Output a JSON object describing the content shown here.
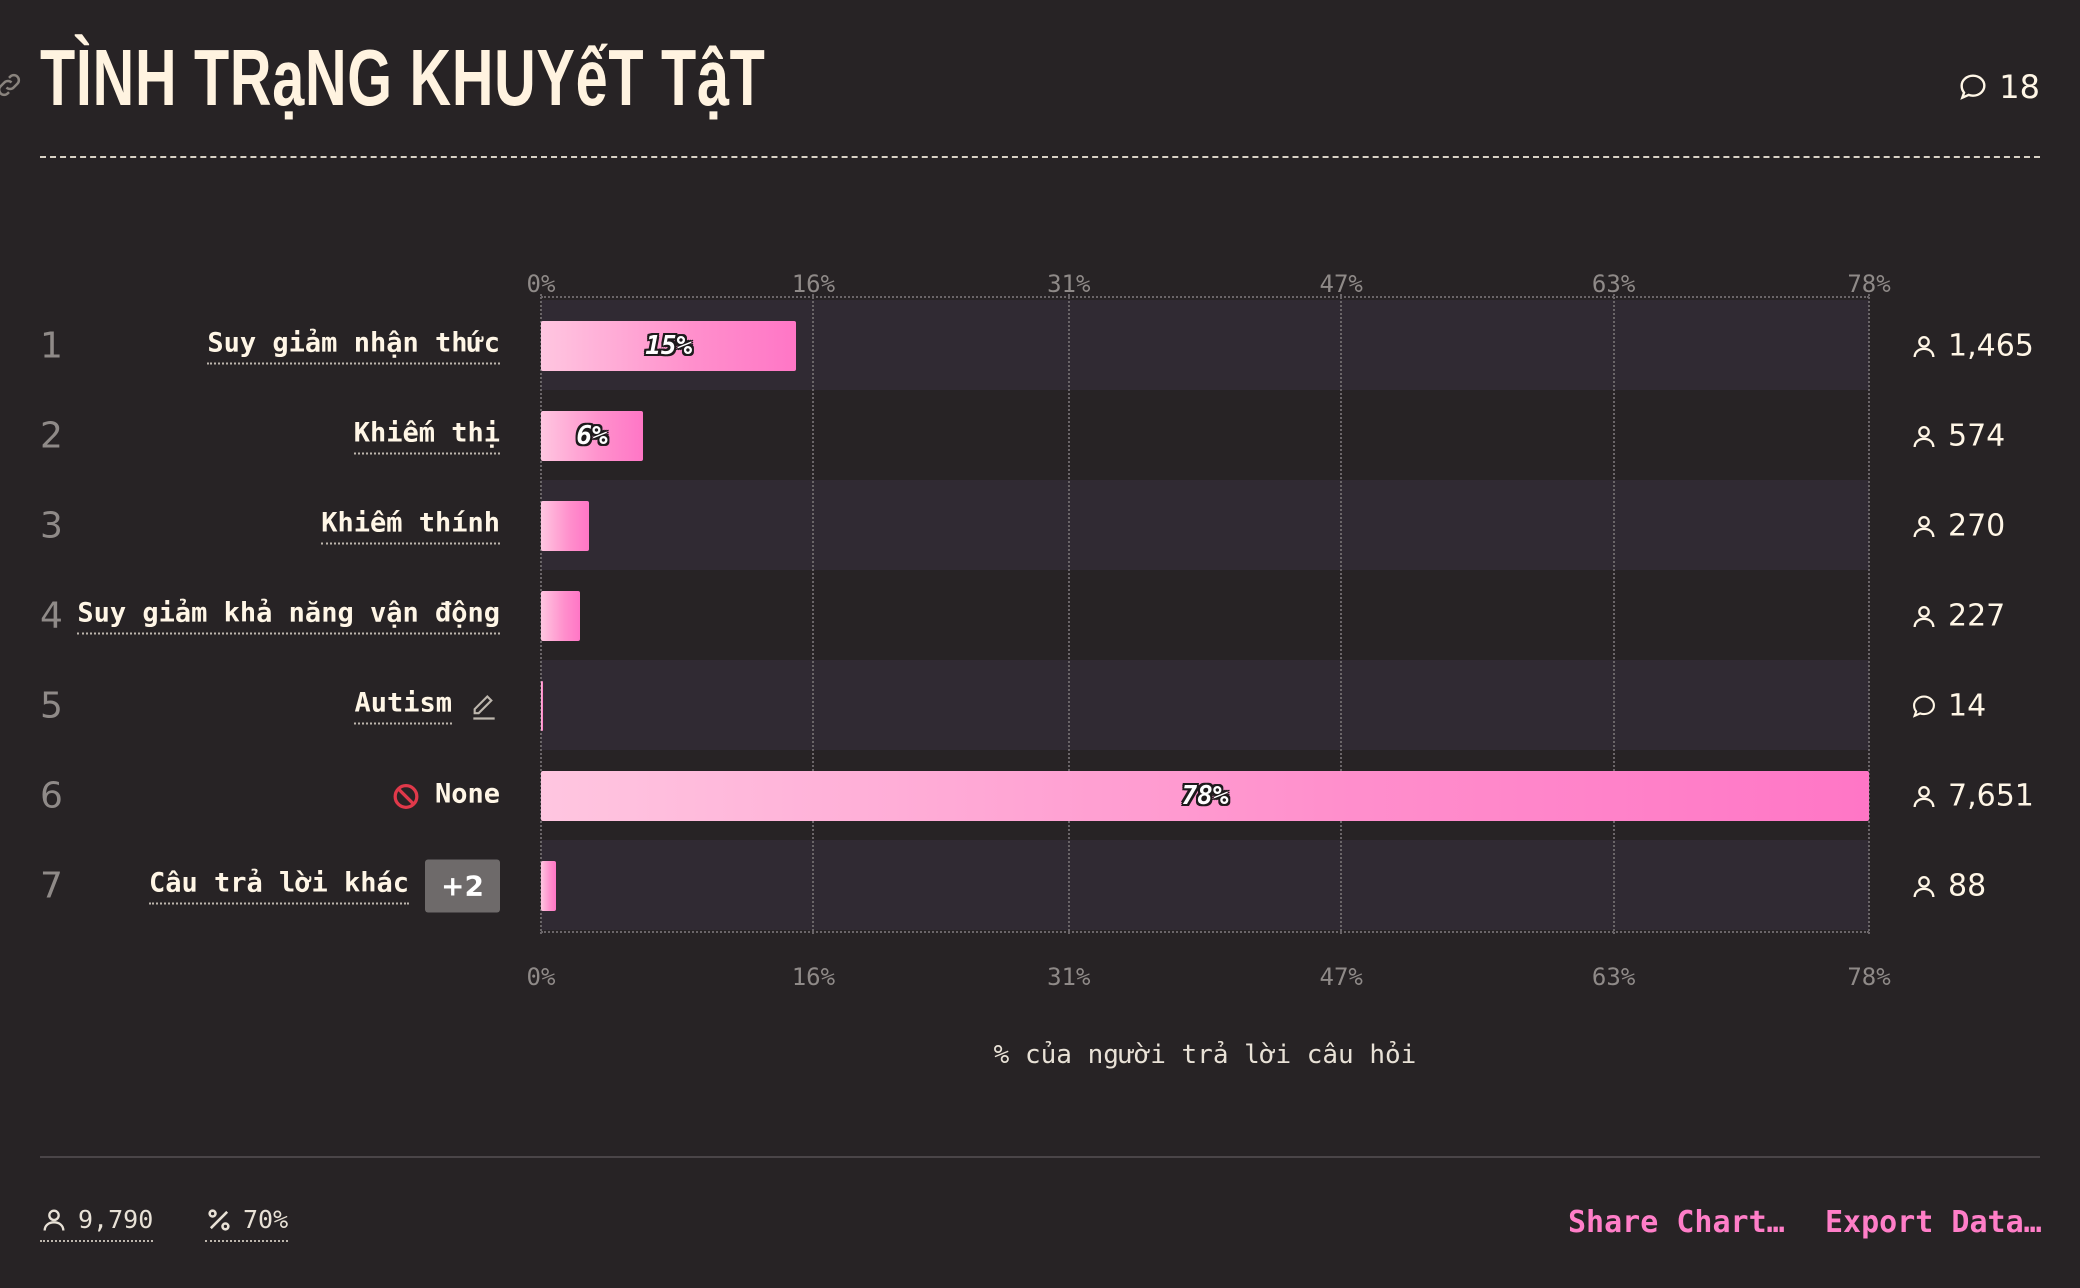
{
  "header": {
    "title": "TÌNH TRạNG KHUYếT TậT",
    "comment_count": "18"
  },
  "chart_data": {
    "type": "bar",
    "orientation": "horizontal",
    "xlim": [
      0,
      78
    ],
    "ticks": [
      "0%",
      "16%",
      "31%",
      "47%",
      "63%",
      "78%"
    ],
    "tick_values": [
      0,
      16,
      31,
      47,
      63,
      78
    ],
    "xlabel": "% của người trả lời câu hỏi",
    "rows": [
      {
        "rank": "1",
        "label": "Suy giảm nhận thức",
        "value": 15,
        "value_label": "15%",
        "count": "1,465",
        "count_icon": "person-icon"
      },
      {
        "rank": "2",
        "label": "Khiếm thị",
        "value": 6,
        "value_label": "6%",
        "count": "574",
        "count_icon": "person-icon"
      },
      {
        "rank": "3",
        "label": "Khiếm thính",
        "value": 2.8,
        "value_label": "",
        "count": "270",
        "count_icon": "person-icon"
      },
      {
        "rank": "4",
        "label": "Suy giảm khả năng vận động",
        "value": 2.3,
        "value_label": "",
        "count": "227",
        "count_icon": "person-icon"
      },
      {
        "rank": "5",
        "label": "Autism",
        "value": 0.14,
        "value_label": "",
        "count": "14",
        "count_icon": "comment-icon",
        "edit_icon": true
      },
      {
        "rank": "6",
        "label": "None",
        "value": 78,
        "value_label": "78%",
        "count": "7,651",
        "count_icon": "person-icon",
        "prefix_icon": "no-entry-icon"
      },
      {
        "rank": "7",
        "label": "Câu trả lời khác",
        "value": 0.9,
        "value_label": "",
        "count": "88",
        "count_icon": "person-icon",
        "badge": "+2"
      }
    ]
  },
  "footer": {
    "respondents": "9,790",
    "percent": "70%",
    "share_label": "Share Chart…",
    "export_label": "Export Data…"
  },
  "colors": {
    "background": "#272325",
    "bar_start": "#ffc6e0",
    "bar_end": "#ff76c6",
    "link": "#ff7ec8"
  }
}
